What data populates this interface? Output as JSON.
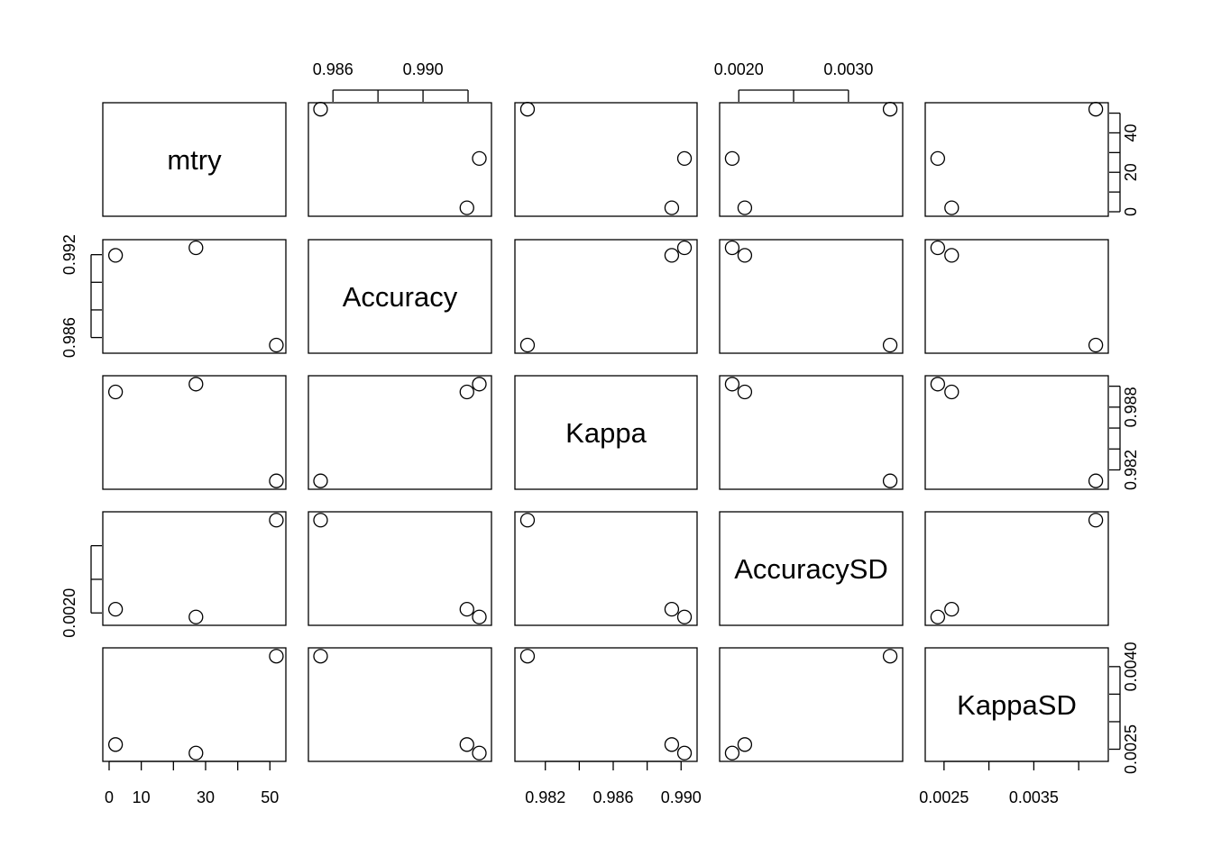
{
  "chart_data": {
    "type": "scatter",
    "variables": [
      "mtry",
      "Accuracy",
      "Kappa",
      "AccuracySD",
      "KappaSD"
    ],
    "observations": [
      {
        "mtry": 2,
        "Accuracy": 0.99195,
        "Kappa": 0.98945,
        "AccuracySD": 0.002055,
        "KappaSD": 0.002585
      },
      {
        "mtry": 27,
        "Accuracy": 0.9925,
        "Kappa": 0.9902,
        "AccuracySD": 0.00194,
        "KappaSD": 0.00243
      },
      {
        "mtry": 52,
        "Accuracy": 0.98545,
        "Kappa": 0.98095,
        "AccuracySD": 0.00338,
        "KappaSD": 0.00419
      }
    ],
    "axes": {
      "mtry": {
        "lim": [
          0.0,
          53.0
        ],
        "ticks": [
          0,
          10,
          20,
          30,
          40,
          50
        ],
        "labels": [
          "0",
          "10",
          "30",
          "50"
        ],
        "label_ticks": [
          0,
          10,
          30,
          50
        ],
        "right_labels": [
          "0",
          "20",
          "40"
        ],
        "right_label_ticks": [
          0,
          20,
          40
        ]
      },
      "Accuracy": {
        "lim": [
          0.98519,
          0.99276
        ],
        "ticks": [
          0.986,
          0.988,
          0.99,
          0.992
        ],
        "top_labels": [
          "0.986",
          "0.990"
        ],
        "top_label_ticks": [
          0.986,
          0.99
        ],
        "left_labels": [
          "0.986",
          "0.992"
        ],
        "left_label_ticks": [
          0.986,
          0.992
        ]
      },
      "Kappa": {
        "lim": [
          0.98058,
          0.99057
        ],
        "ticks": [
          0.982,
          0.984,
          0.986,
          0.988,
          0.99
        ],
        "labels": [
          "0.982",
          "0.986",
          "0.990"
        ],
        "label_ticks": [
          0.982,
          0.986,
          0.99
        ],
        "right_labels": [
          "0.982",
          "0.988"
        ],
        "right_label_ticks": [
          0.982,
          0.988
        ]
      },
      "AccuracySD": {
        "lim": [
          0.001883,
          0.003437
        ],
        "ticks": [
          0.002,
          0.0025,
          0.003
        ],
        "top_labels": [
          "0.0020",
          "0.0030"
        ],
        "top_label_ticks": [
          0.002,
          0.003
        ],
        "left_labels": [
          "0.0020"
        ],
        "left_label_ticks": [
          0.002
        ]
      },
      "KappaSD": {
        "lim": [
          0.002361,
          0.004259
        ],
        "ticks": [
          0.0025,
          0.003,
          0.0035,
          0.004
        ],
        "labels": [
          "0.0025",
          "0.0035"
        ],
        "label_ticks": [
          0.0025,
          0.0035
        ],
        "right_labels": [
          "0.0025",
          "0.0040"
        ],
        "right_label_ticks": [
          0.0025,
          0.004
        ]
      }
    },
    "grid": false,
    "legend": "none"
  }
}
